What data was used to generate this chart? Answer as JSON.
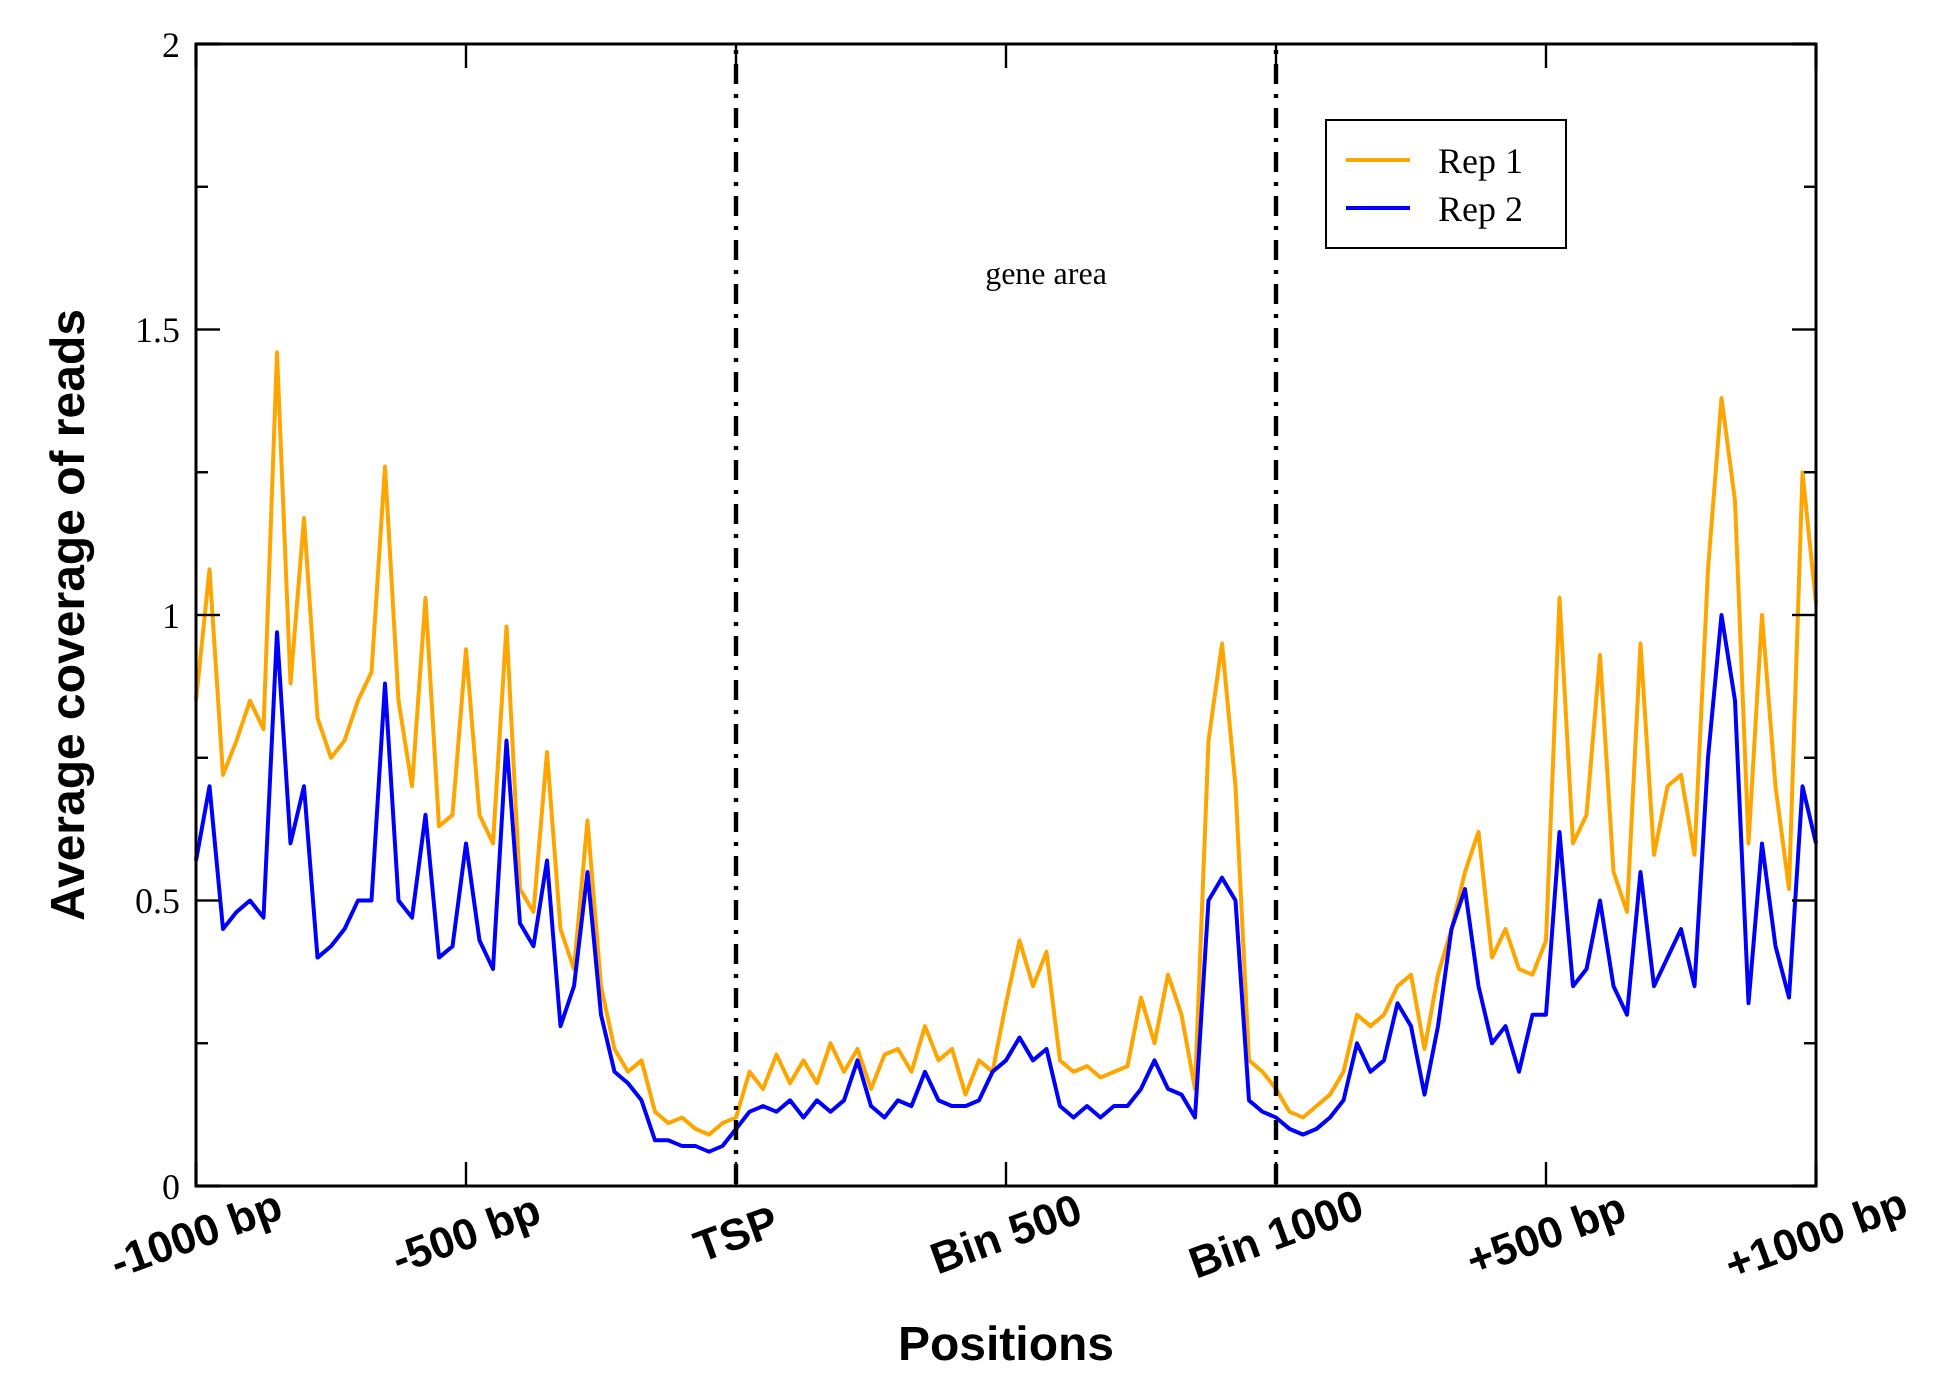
{
  "chart_data": {
    "type": "line",
    "xlabel": "Positions",
    "ylabel": "Average coverage of reads",
    "annotations": [
      "gene area"
    ],
    "categories": [
      "-1000 bp",
      null,
      null,
      null,
      null,
      null,
      null,
      null,
      null,
      null,
      null,
      null,
      null,
      null,
      null,
      null,
      null,
      null,
      null,
      null,
      "-500 bp",
      null,
      null,
      null,
      null,
      null,
      null,
      null,
      null,
      null,
      null,
      null,
      null,
      null,
      null,
      null,
      null,
      null,
      null,
      null,
      "TSP",
      null,
      null,
      null,
      null,
      null,
      null,
      null,
      null,
      null,
      null,
      null,
      null,
      null,
      null,
      null,
      null,
      null,
      null,
      null,
      "Bin 500",
      null,
      null,
      null,
      null,
      null,
      null,
      null,
      null,
      null,
      null,
      null,
      null,
      null,
      null,
      null,
      null,
      null,
      null,
      null,
      "Bin 1000",
      null,
      null,
      null,
      null,
      null,
      null,
      null,
      null,
      null,
      null,
      null,
      null,
      null,
      null,
      null,
      null,
      null,
      null,
      null,
      "+500 bp",
      null,
      null,
      null,
      null,
      null,
      null,
      null,
      null,
      null,
      null,
      null,
      null,
      null,
      null,
      null,
      null,
      null,
      null,
      null,
      "+1000 bp"
    ],
    "ylim": [
      0,
      2
    ],
    "yticks": [
      0,
      {
        "value": 0.25,
        "label": null
      },
      0.5,
      {
        "value": 0.75,
        "label": null
      },
      1,
      {
        "value": 1.25,
        "label": null
      },
      1.5,
      {
        "value": 1.75,
        "label": null
      },
      2
    ],
    "ref_lines": [
      {
        "axis": "x",
        "value": "TSP",
        "color": "#000000",
        "line_style": "dashdot"
      },
      {
        "axis": "x",
        "value": "Bin 1000",
        "color": "#000000",
        "line_style": "dashdot"
      }
    ],
    "legend": "top right",
    "line_style": "solid",
    "series": [
      {
        "name": "Rep 1",
        "color": "#ffa500",
        "values": [
          0.85,
          1.08,
          0.72,
          0.78,
          0.85,
          0.8,
          1.46,
          0.88,
          1.17,
          0.82,
          0.75,
          0.78,
          0.85,
          0.9,
          1.26,
          0.85,
          0.7,
          1.03,
          0.63,
          0.65,
          0.94,
          0.65,
          0.6,
          0.98,
          0.52,
          0.48,
          0.76,
          0.45,
          0.38,
          0.64,
          0.35,
          0.24,
          0.2,
          0.22,
          0.13,
          0.11,
          0.12,
          0.1,
          0.09,
          0.11,
          0.12,
          0.2,
          0.17,
          0.23,
          0.18,
          0.22,
          0.18,
          0.25,
          0.2,
          0.24,
          0.17,
          0.23,
          0.24,
          0.2,
          0.28,
          0.22,
          0.24,
          0.16,
          0.22,
          0.2,
          0.32,
          0.43,
          0.35,
          0.41,
          0.22,
          0.2,
          0.21,
          0.19,
          0.2,
          0.21,
          0.33,
          0.25,
          0.37,
          0.3,
          0.17,
          0.78,
          0.95,
          0.7,
          0.22,
          0.2,
          0.17,
          0.13,
          0.12,
          0.14,
          0.16,
          0.2,
          0.3,
          0.28,
          0.3,
          0.35,
          0.37,
          0.24,
          0.37,
          0.45,
          0.55,
          0.62,
          0.4,
          0.45,
          0.38,
          0.37,
          0.43,
          1.03,
          0.6,
          0.65,
          0.93,
          0.55,
          0.48,
          0.95,
          0.58,
          0.7,
          0.72,
          0.58,
          1.08,
          1.38,
          1.2,
          0.6,
          1.0,
          0.7,
          0.52,
          1.25,
          1.02
        ]
      },
      {
        "name": "Rep 2",
        "color": "#0000ff",
        "values": [
          0.57,
          0.7,
          0.45,
          0.48,
          0.5,
          0.47,
          0.97,
          0.6,
          0.7,
          0.4,
          0.42,
          0.45,
          0.5,
          0.5,
          0.88,
          0.5,
          0.47,
          0.65,
          0.4,
          0.42,
          0.6,
          0.43,
          0.38,
          0.78,
          0.46,
          0.42,
          0.57,
          0.28,
          0.35,
          0.55,
          0.3,
          0.2,
          0.18,
          0.15,
          0.08,
          0.08,
          0.07,
          0.07,
          0.06,
          0.07,
          0.1,
          0.13,
          0.14,
          0.13,
          0.15,
          0.12,
          0.15,
          0.13,
          0.15,
          0.22,
          0.14,
          0.12,
          0.15,
          0.14,
          0.2,
          0.15,
          0.14,
          0.14,
          0.15,
          0.2,
          0.22,
          0.26,
          0.22,
          0.24,
          0.14,
          0.12,
          0.14,
          0.12,
          0.14,
          0.14,
          0.17,
          0.22,
          0.17,
          0.16,
          0.12,
          0.5,
          0.54,
          0.5,
          0.15,
          0.13,
          0.12,
          0.1,
          0.09,
          0.1,
          0.12,
          0.15,
          0.25,
          0.2,
          0.22,
          0.32,
          0.28,
          0.16,
          0.28,
          0.45,
          0.52,
          0.35,
          0.25,
          0.28,
          0.2,
          0.3,
          0.3,
          0.62,
          0.35,
          0.38,
          0.5,
          0.35,
          0.3,
          0.55,
          0.35,
          0.4,
          0.45,
          0.35,
          0.75,
          1.0,
          0.85,
          0.32,
          0.6,
          0.42,
          0.33,
          0.7,
          0.6
        ]
      }
    ]
  }
}
